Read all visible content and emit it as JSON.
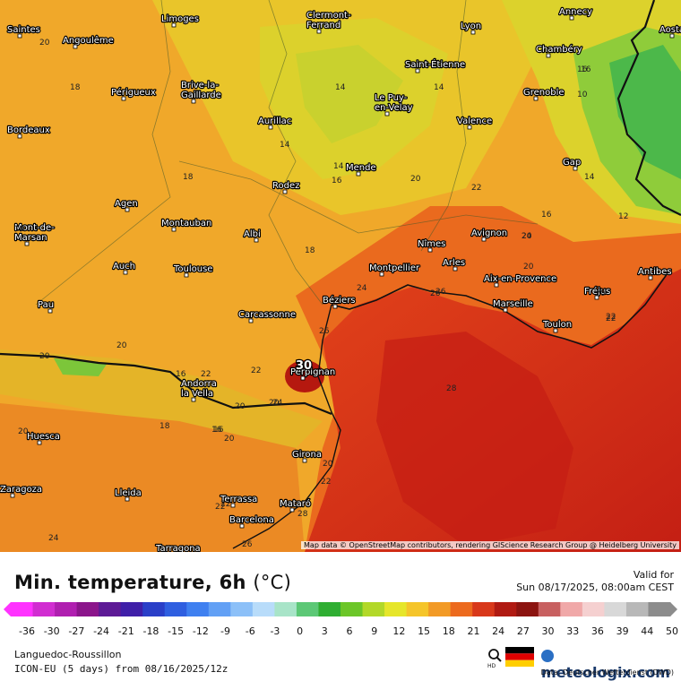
{
  "map": {
    "region": "Languedoc-Roussillon",
    "attribution": "Map data © OpenStreetMap contributors, rendering GIScience Research Group @ Heidelberg University",
    "cities": [
      "Saintes",
      "Angoulême",
      "Limoges",
      "Clermont-Ferrand",
      "Lyon",
      "Annecy",
      "Aosta",
      "Périgueux",
      "Brive-la-Gaillarde",
      "Saint-Étienne",
      "Chambéry",
      "Bordeaux",
      "Aurillac",
      "Le Puy-en-Velay",
      "Grenoble",
      "Valence",
      "Mende",
      "Gap",
      "Rodez",
      "Agen",
      "Montauban",
      "Albi",
      "Nîmes",
      "Avignon",
      "Mont-de-Marsan",
      "Auch",
      "Toulouse",
      "Montpellier",
      "Arles",
      "Aix-en-Provence",
      "Antibes",
      "Fréjus",
      "Pau",
      "Béziers",
      "Marseille",
      "Carcassonne",
      "Toulon",
      "Perpignan",
      "Andorra la Vella",
      "Huesca",
      "Girona",
      "Zaragoza",
      "Lleida",
      "Terrassa",
      "Mataró",
      "Barcelona",
      "Tarragona"
    ],
    "isotherm_labels": [
      "20",
      "18",
      "14",
      "14",
      "14",
      "16",
      "10",
      "18",
      "14",
      "16",
      "20",
      "22",
      "16",
      "16",
      "12",
      "18",
      "14",
      "20",
      "18",
      "20",
      "24",
      "20",
      "20",
      "22",
      "26",
      "22",
      "24",
      "26",
      "30",
      "28",
      "16",
      "20",
      "22",
      "20",
      "18",
      "16",
      "20",
      "20",
      "22",
      "24",
      "20",
      "26",
      "22",
      "28",
      "24",
      "22",
      "26",
      "20",
      "22",
      "16"
    ]
  },
  "legend": {
    "title": "Min. temperature, 6h",
    "unit": "(°C)",
    "ticks": [
      "-36",
      "-30",
      "-27",
      "-24",
      "-21",
      "-18",
      "-15",
      "-12",
      "-9",
      "-6",
      "-3",
      "0",
      "3",
      "6",
      "9",
      "12",
      "15",
      "18",
      "21",
      "24",
      "27",
      "30",
      "33",
      "36",
      "39",
      "44",
      "50"
    ],
    "valid_label": "Valid for",
    "valid_time": "Sun 08/17/2025, 08:00am CEST"
  },
  "footer": {
    "region": "Languedoc-Roussillon",
    "model": "ICON-EU (5 days) from 08/16/2025/12z",
    "brand": "meteologix.com",
    "hd_label": "HD",
    "data_source": "Data: Deutscher Wetterdienst (DWD)"
  }
}
